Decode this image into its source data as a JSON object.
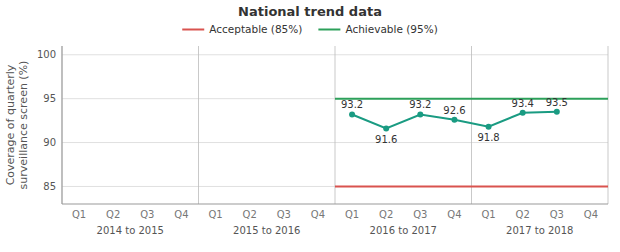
{
  "chart_data": {
    "type": "line",
    "title": "National trend data",
    "y_label": "Coverage of quarterly\nsurveillance screen (%)",
    "categories": [
      "Q1",
      "Q2",
      "Q3",
      "Q4",
      "Q1",
      "Q2",
      "Q3",
      "Q4",
      "Q1",
      "Q2",
      "Q3",
      "Q4",
      "Q1",
      "Q2",
      "Q3",
      "Q4"
    ],
    "year_groups": [
      "2014 to 2015",
      "2015 to 2016",
      "2016 to 2017",
      "2017 to 2018"
    ],
    "series": [
      {
        "color": "#1a9b82",
        "marker": "circle",
        "values": [
          null,
          null,
          null,
          null,
          null,
          null,
          null,
          null,
          93.2,
          91.6,
          93.2,
          92.6,
          91.8,
          93.4,
          93.5,
          null
        ]
      }
    ],
    "reference_lines": [
      {
        "label": "Acceptable (85%)",
        "value": 85,
        "color": "#d9534f",
        "x_start": 7.5,
        "x_end": 15.5
      },
      {
        "label": "Achievable (95%)",
        "value": 95,
        "color": "#2ca05a",
        "x_start": 7.5,
        "x_end": 15.5
      }
    ],
    "ylim": [
      83,
      101
    ],
    "yticks": [
      85,
      90,
      95,
      100
    ],
    "grid": true,
    "legend": "top",
    "data_labels": true
  }
}
